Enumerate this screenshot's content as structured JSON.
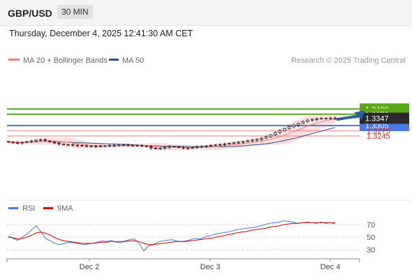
{
  "header": {
    "symbol": "GBP/USD",
    "timeframe": "30 MIN"
  },
  "datetime": "Thursday, December 4, 2025 12:41:30 AM CET",
  "legend": {
    "ma20_label": "MA 20 + Bollinger Bands",
    "ma50_label": "MA 50",
    "ma20_color": "#f08080",
    "ma50_color": "#2f4d8a",
    "credit": "Research © 2025 Trading Central"
  },
  "rsi_legend": {
    "rsi_label": "RSI",
    "ma_label": "9MA",
    "rsi_color": "#4a78d8",
    "ma_color": "#d40000"
  },
  "chart_data": [
    {
      "type": "candlestick",
      "x_ticks": [
        "Dec 2",
        "Dec 3",
        "Dec 4"
      ],
      "current_price": "1.3347",
      "levels": [
        {
          "value": 1.34,
          "label": "1.3400",
          "kind": "resistance",
          "color": "#5aa818"
        },
        {
          "value": 1.337,
          "label": "1.3370",
          "kind": "resistance",
          "color": "#5aa818"
        },
        {
          "value": 1.3305,
          "label": "1.3305",
          "kind": "pivot",
          "color": "#4a78e8"
        },
        {
          "value": 1.3275,
          "label": "1.3275",
          "kind": "support",
          "color": "#f08080"
        },
        {
          "value": 1.3245,
          "label": "1.3245",
          "kind": "support",
          "color": "#f08080"
        }
      ],
      "bias": "bullish",
      "close_series": [
        1.321,
        1.3207,
        1.3205,
        1.3209,
        1.3212,
        1.3216,
        1.3221,
        1.3224,
        1.3218,
        1.3212,
        1.3205,
        1.3199,
        1.3195,
        1.3196,
        1.3193,
        1.3191,
        1.3189,
        1.3187,
        1.3188,
        1.3186,
        1.3187,
        1.3189,
        1.3191,
        1.3192,
        1.3193,
        1.3194,
        1.3193,
        1.3191,
        1.319,
        1.3188,
        1.3187,
        1.3176,
        1.3172,
        1.3175,
        1.318,
        1.3185,
        1.3183,
        1.318,
        1.3177,
        1.3176,
        1.3178,
        1.3182,
        1.3186,
        1.3188,
        1.3191,
        1.3194,
        1.3196,
        1.3199,
        1.3203,
        1.3206,
        1.3209,
        1.3213,
        1.3217,
        1.3221,
        1.3226,
        1.3232,
        1.324,
        1.3252,
        1.3265,
        1.3276,
        1.3288,
        1.3298,
        1.3308,
        1.3318,
        1.3328,
        1.3336,
        1.3341,
        1.3344,
        1.3346,
        1.3347,
        1.3348,
        1.3347
      ]
    },
    {
      "type": "line",
      "name": "RSI panel",
      "y_ticks": [
        70,
        50,
        30
      ],
      "rsi": [
        52,
        48,
        45,
        50,
        55,
        62,
        68,
        58,
        48,
        44,
        40,
        38,
        40,
        42,
        41,
        40,
        38,
        39,
        40,
        42,
        44,
        43,
        45,
        42,
        41,
        44,
        46,
        47,
        40,
        28,
        36,
        38,
        42,
        44,
        45,
        46,
        44,
        43,
        44,
        46,
        48,
        47,
        50,
        52,
        54,
        56,
        57,
        58,
        60,
        62,
        63,
        64,
        65,
        66,
        68,
        70,
        72,
        73,
        74,
        76,
        75,
        74,
        72,
        73,
        74,
        73,
        72,
        74,
        72,
        73,
        71
      ],
      "ma9": [
        50,
        49,
        47,
        48,
        50,
        53,
        57,
        58,
        56,
        53,
        49,
        46,
        44,
        43,
        42,
        41,
        40,
        40,
        40,
        41,
        42,
        42,
        43,
        43,
        43,
        43,
        44,
        44,
        43,
        40,
        38,
        38,
        39,
        40,
        41,
        42,
        43,
        43,
        43,
        44,
        45,
        46,
        47,
        48,
        49,
        51,
        52,
        54,
        55,
        57,
        58,
        59,
        61,
        62,
        63,
        64,
        66,
        67,
        68,
        70,
        71,
        72,
        72,
        73,
        73,
        73,
        73,
        73,
        73,
        73,
        73
      ]
    }
  ]
}
